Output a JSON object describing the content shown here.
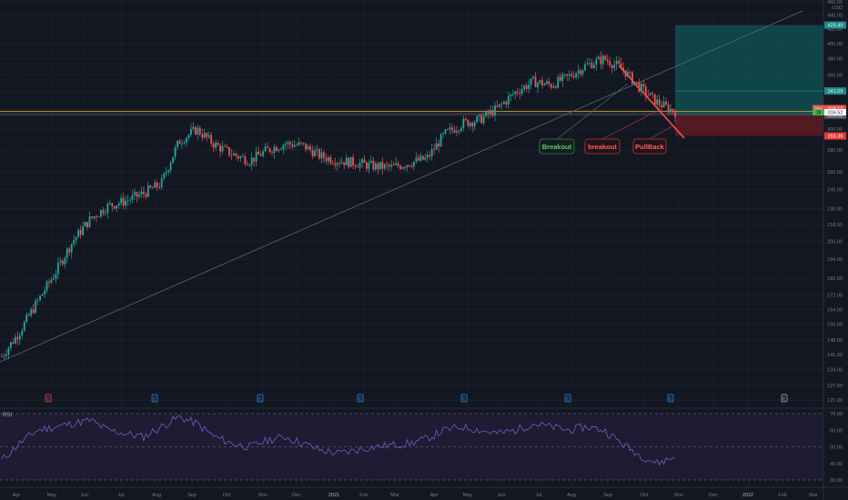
{
  "currency": "USD",
  "price_axis": {
    "ticks": [
      "460.00",
      "440.00",
      "420.00",
      "400.00",
      "380.00",
      "360.00",
      "340.00",
      "320.00",
      "300.00",
      "280.00",
      "260.00",
      "245.00",
      "230.00",
      "218.00",
      "206.00",
      "194.00",
      "182.00",
      "172.00",
      "164.00",
      "156.00",
      "148.00",
      "141.00",
      "134.00",
      "127.00",
      "121.00"
    ],
    "tags": {
      "target": "425.49",
      "mid": "341.09",
      "price": "318.12",
      "last": "316.52",
      "entry": "314.52",
      "stop": "293.39",
      "p_label": "Vos",
      "countdown": "19"
    }
  },
  "time_axis": [
    "Apr",
    "May",
    "Jun",
    "Jul",
    "Aug",
    "Sep",
    "Oct",
    "Nov",
    "Dec",
    "2021",
    "Feb",
    "Mar",
    "Apr",
    "May",
    "Jun",
    "Jul",
    "Aug",
    "Sep",
    "Oct",
    "Nov",
    "Dec",
    "2022",
    "Feb",
    "Mar"
  ],
  "annotations": {
    "breakout_green": "Breakout",
    "breakout_red": "breakout",
    "pullback": "PullBack"
  },
  "earnings_marker": "E",
  "rsi": {
    "label": "RSI",
    "ticks": [
      "70.00",
      "60.00",
      "50.00",
      "40.00",
      "30.00"
    ]
  },
  "colors": {
    "background": "#131722",
    "up": "#26a69a",
    "down": "#ef5350",
    "target_zone": "#0f4d4f",
    "stop_zone": "#5a1c22",
    "rsi_line": "#7e57c2",
    "rsi_band": "#241d3a"
  },
  "chart_data": {
    "type": "candlestick",
    "currency": "USD",
    "x": [
      "Mar",
      "Apr",
      "Apr",
      "May",
      "May",
      "Jun",
      "Jun",
      "Jul",
      "Jul",
      "Aug",
      "Aug",
      "Sep",
      "Sep",
      "Oct",
      "Oct",
      "Nov",
      "Nov",
      "Dec",
      "Dec",
      "Jan",
      "Jan",
      "Feb",
      "Feb",
      "Mar",
      "Mar",
      "Apr",
      "Apr",
      "May",
      "May",
      "Jun",
      "Jun",
      "Jul",
      "Jul",
      "Aug",
      "Aug",
      "Sep",
      "Sep",
      "Oct",
      "Oct"
    ],
    "close": [
      140,
      152,
      168,
      185,
      206,
      222,
      232,
      236,
      242,
      250,
      288,
      300,
      285,
      276,
      270,
      280,
      286,
      284,
      274,
      270,
      268,
      265,
      264,
      268,
      272,
      295,
      306,
      310,
      322,
      340,
      352,
      348,
      358,
      372,
      380,
      368,
      345,
      328,
      318
    ],
    "rsi": [
      42,
      52,
      60,
      62,
      64,
      66,
      60,
      58,
      56,
      62,
      68,
      64,
      56,
      52,
      50,
      54,
      56,
      52,
      48,
      46,
      48,
      50,
      51,
      52,
      55,
      60,
      62,
      60,
      58,
      60,
      64,
      62,
      60,
      62,
      60,
      52,
      45,
      40,
      44
    ],
    "y_axis_scale": "log",
    "ylim": [
      121,
      460
    ],
    "levels": {
      "target": 425.49,
      "entry": 314.52,
      "stop": 293.39,
      "price": 318.12
    }
  }
}
